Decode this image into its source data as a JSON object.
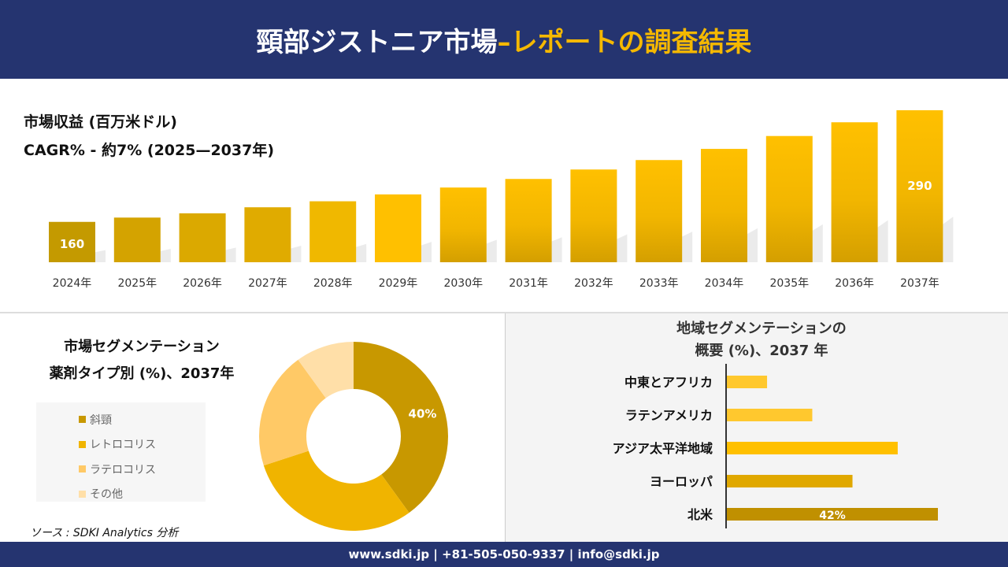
{
  "header": {
    "title_main": "頸部ジストニア市場",
    "title_accent": "–レポートの調査結果"
  },
  "revenue": {
    "title": "市場収益 (百万米ドル)",
    "cagr": "CAGR% - 約7% (2025—2037年)"
  },
  "chart_data": [
    {
      "type": "bar",
      "categories": [
        "2024年",
        "2025年",
        "2026年",
        "2027年",
        "2028年",
        "2029年",
        "2030年",
        "2031年",
        "2032年",
        "2033年",
        "2034年",
        "2035年",
        "2036年",
        "2037年"
      ],
      "values": [
        160,
        165,
        170,
        177,
        184,
        192,
        200,
        210,
        221,
        232,
        245,
        260,
        276,
        290
      ],
      "data_labels": {
        "0": "160",
        "13": "290"
      },
      "colors": [
        "#c49a00",
        "#d4a300",
        "#dba900",
        "#e0ab00",
        "#f0b800",
        "#ffc000",
        "#ffc000",
        "#ffc000",
        "#ffc000",
        "#ffc000",
        "#ffc000",
        "#ffc000",
        "#ffc000",
        "#ffc000"
      ],
      "ylim": [
        113,
        300
      ],
      "grid": false
    },
    {
      "type": "pie",
      "title": "市場セグメンテーション 薬剤タイプ別 (%)、2037年",
      "labels": [
        "斜頸",
        "レトロコリス",
        "ラテロコリス",
        "その他"
      ],
      "values": [
        40,
        30,
        20,
        10
      ],
      "colors": [
        "#c89800",
        "#f0b400",
        "#ffc966",
        "#ffdfa8"
      ],
      "data_labels": {
        "0": "40%"
      },
      "legend": "left"
    },
    {
      "type": "bar",
      "orientation": "horizontal",
      "title": "地域セグメンテーションの 概要 (%)、2037 年",
      "categories": [
        "中東とアフリカ",
        "ラテンアメリカ",
        "アジア太平洋地域",
        "ヨーロッパ",
        "北米"
      ],
      "values": [
        8,
        17,
        34,
        25,
        42
      ],
      "colors": [
        "#ffc82e",
        "#ffc82e",
        "#ffc000",
        "#e0a800",
        "#c09000"
      ],
      "data_labels": {
        "4": "42%"
      }
    }
  ],
  "segment": {
    "title_line1": "市場セグメンテーション",
    "title_line2": "薬剤タイプ別 (%)、2037年"
  },
  "region": {
    "title_line1": "地域セグメンテーションの",
    "title_line2": "概要 (%)、2037 年"
  },
  "source": "ソース : SDKI Analytics 分析",
  "footer": "www.sdki.jp | +81-505-050-9337 | info@sdki.jp"
}
